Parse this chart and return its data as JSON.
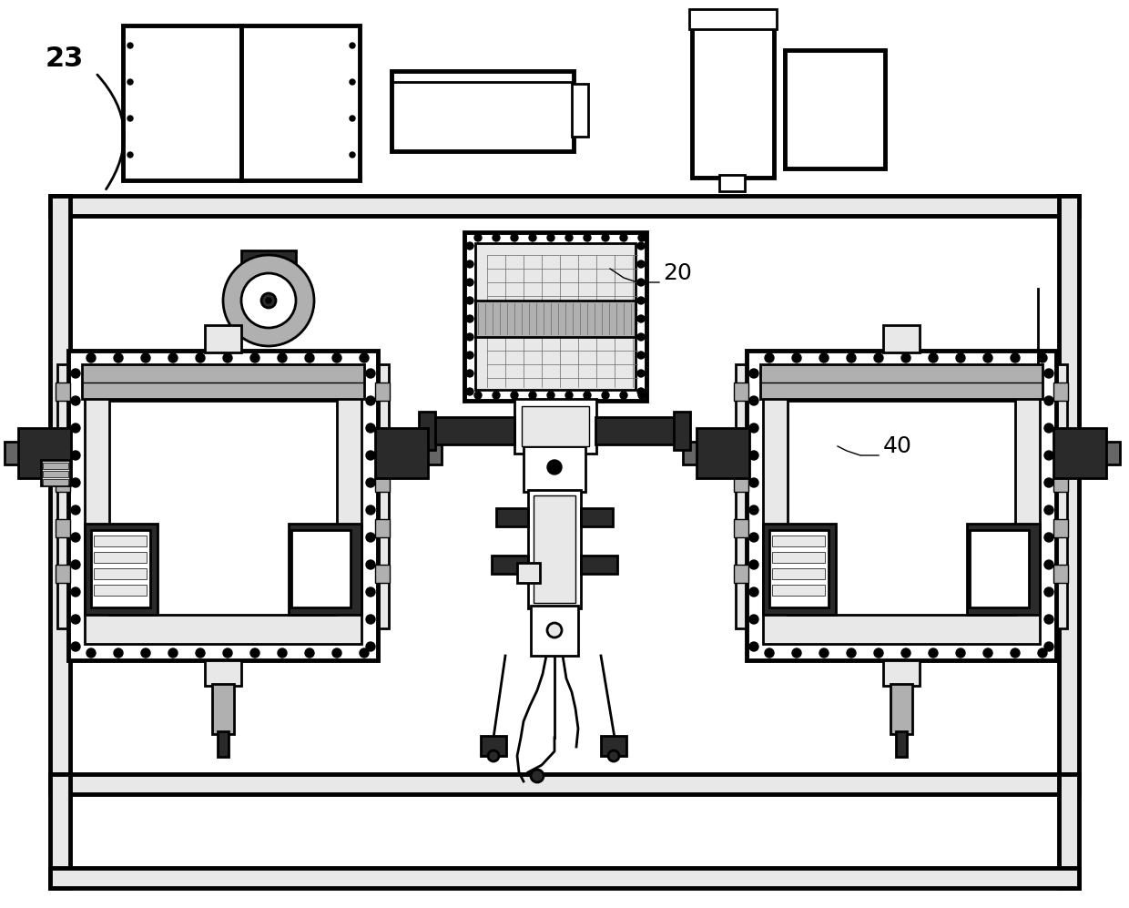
{
  "bg_color": "#ffffff",
  "line_color": "#000000",
  "dark_gray": "#2a2a2a",
  "mid_gray": "#666666",
  "light_gray": "#b0b0b0",
  "very_light_gray": "#e8e8e8",
  "label_23": "23",
  "label_20": "20",
  "label_40": "40",
  "figsize": [
    12.4,
    9.97
  ],
  "dpi": 100,
  "lw_thick": 3.5,
  "lw_med": 2.0,
  "lw_thin": 1.0,
  "lw_hair": 0.5
}
